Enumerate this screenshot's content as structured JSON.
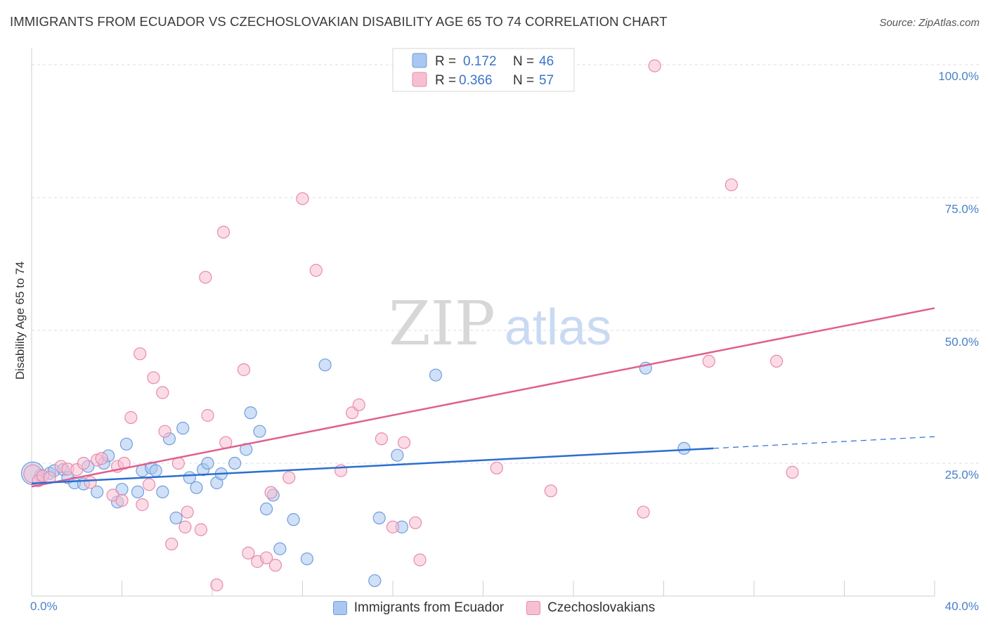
{
  "title": "IMMIGRANTS FROM ECUADOR VS CZECHOSLOVAKIAN DISABILITY AGE 65 TO 74 CORRELATION CHART",
  "source": "Source: ZipAtlas.com",
  "watermark": {
    "zip": "ZIP",
    "atlas": "atlas"
  },
  "legend": {
    "series": [
      {
        "r_label": "R =",
        "r_value": "0.172",
        "n_label": "N =",
        "n_value": "46"
      },
      {
        "r_label": "R =",
        "r_value": "0.366",
        "n_label": "N =",
        "n_value": "57"
      }
    ]
  },
  "bottom_legend": [
    "Immigrants from Ecuador",
    "Czechoslovakians"
  ],
  "colors": {
    "blue_fill": "#a9c7f0",
    "blue_stroke": "#6f9ede",
    "blue_line": "#2a6fd1",
    "pink_fill": "#f7c0d2",
    "pink_stroke": "#e88aaa",
    "pink_line": "#e0608e",
    "grid": "#dddddd",
    "tick_label": "#4a7fc8"
  },
  "chart_data": {
    "type": "scatter",
    "title": "IMMIGRANTS FROM ECUADOR VS CZECHOSLOVAKIAN DISABILITY AGE 65 TO 74 CORRELATION CHART",
    "xlabel": "",
    "ylabel": "Disability Age 65 to 74",
    "xlim": [
      0,
      40
    ],
    "ylim": [
      0,
      102
    ],
    "x_tick_labels": {
      "min": "0.0%",
      "max": "40.0%"
    },
    "y_ticks": [
      25,
      50,
      75,
      100
    ],
    "y_tick_labels": [
      "25.0%",
      "50.0%",
      "75.0%",
      "100.0%"
    ],
    "series": [
      {
        "name": "Immigrants from Ecuador",
        "color": "blue",
        "trend": {
          "x0": 0,
          "y0": 21.2,
          "x1": 30.2,
          "y1": 27.8,
          "dash_to_x": 40,
          "dash_to_y": 30.0
        },
        "points": [
          [
            0.05,
            23.1,
            1.9
          ],
          [
            0.4,
            22.7,
            1
          ],
          [
            0.8,
            23.1,
            1
          ],
          [
            1.0,
            23.6,
            1
          ],
          [
            1.4,
            23.8,
            1
          ],
          [
            1.6,
            22.3,
            1
          ],
          [
            1.9,
            21.3,
            1
          ],
          [
            2.3,
            21.1,
            1
          ],
          [
            2.5,
            24.4,
            1
          ],
          [
            2.9,
            19.6,
            1
          ],
          [
            3.2,
            25.0,
            1
          ],
          [
            3.4,
            26.4,
            1
          ],
          [
            3.8,
            17.7,
            1
          ],
          [
            4.0,
            20.1,
            1
          ],
          [
            4.2,
            28.6,
            1
          ],
          [
            4.7,
            19.6,
            1
          ],
          [
            4.9,
            23.6,
            1
          ],
          [
            5.3,
            24.1,
            1
          ],
          [
            5.5,
            23.6,
            1
          ],
          [
            5.8,
            19.6,
            1
          ],
          [
            6.1,
            29.6,
            1
          ],
          [
            6.4,
            14.7,
            1
          ],
          [
            6.7,
            31.6,
            1
          ],
          [
            7.0,
            22.3,
            1
          ],
          [
            7.3,
            20.4,
            1
          ],
          [
            7.6,
            23.8,
            1
          ],
          [
            7.8,
            25.0,
            1
          ],
          [
            8.2,
            21.3,
            1
          ],
          [
            8.4,
            23.0,
            1
          ],
          [
            9.0,
            25.0,
            1
          ],
          [
            9.5,
            27.6,
            1
          ],
          [
            9.7,
            34.5,
            1
          ],
          [
            10.1,
            31.0,
            1
          ],
          [
            10.4,
            16.4,
            1
          ],
          [
            10.7,
            19.0,
            1
          ],
          [
            11.0,
            8.9,
            1
          ],
          [
            11.6,
            14.4,
            1
          ],
          [
            12.2,
            7.0,
            1
          ],
          [
            13.0,
            43.5,
            1
          ],
          [
            15.2,
            2.9,
            1
          ],
          [
            15.4,
            14.7,
            1
          ],
          [
            16.2,
            26.5,
            1
          ],
          [
            16.4,
            13.0,
            1
          ],
          [
            17.9,
            41.6,
            1
          ],
          [
            27.2,
            42.9,
            1
          ],
          [
            28.9,
            27.8,
            1
          ]
        ]
      },
      {
        "name": "Czechoslovakians",
        "color": "pink",
        "trend": {
          "x0": 0,
          "y0": 20.6,
          "x1": 40,
          "y1": 54.2
        },
        "points": [
          [
            0.05,
            23.0,
            1.5
          ],
          [
            0.3,
            21.7,
            1
          ],
          [
            0.5,
            22.6,
            1
          ],
          [
            0.8,
            22.3,
            1
          ],
          [
            1.3,
            24.4,
            1
          ],
          [
            1.6,
            23.9,
            1
          ],
          [
            2.0,
            23.8,
            1
          ],
          [
            2.3,
            25.0,
            1
          ],
          [
            2.6,
            21.4,
            1
          ],
          [
            2.9,
            25.6,
            1
          ],
          [
            3.1,
            25.9,
            1
          ],
          [
            3.6,
            19.0,
            1
          ],
          [
            3.8,
            24.4,
            1
          ],
          [
            4.0,
            18.0,
            1
          ],
          [
            4.1,
            25.0,
            1
          ],
          [
            4.4,
            33.6,
            1
          ],
          [
            4.8,
            45.6,
            1
          ],
          [
            4.9,
            17.2,
            1
          ],
          [
            5.2,
            21.0,
            1
          ],
          [
            5.4,
            41.1,
            1
          ],
          [
            5.8,
            38.3,
            1
          ],
          [
            5.9,
            31.0,
            1
          ],
          [
            6.2,
            9.8,
            1
          ],
          [
            6.5,
            25.0,
            1
          ],
          [
            6.8,
            13.0,
            1
          ],
          [
            6.9,
            15.8,
            1
          ],
          [
            7.5,
            12.5,
            1
          ],
          [
            7.7,
            60.0,
            1
          ],
          [
            7.8,
            34.0,
            1
          ],
          [
            8.2,
            2.1,
            1
          ],
          [
            8.5,
            68.5,
            1
          ],
          [
            8.6,
            28.9,
            1
          ],
          [
            9.4,
            42.6,
            1
          ],
          [
            9.6,
            8.1,
            1
          ],
          [
            10.0,
            6.5,
            1
          ],
          [
            10.4,
            7.2,
            1
          ],
          [
            10.6,
            19.5,
            1
          ],
          [
            10.8,
            5.8,
            1
          ],
          [
            11.4,
            22.3,
            1
          ],
          [
            12.0,
            74.8,
            1
          ],
          [
            12.6,
            61.3,
            1
          ],
          [
            13.7,
            23.6,
            1
          ],
          [
            14.2,
            34.5,
            1
          ],
          [
            14.5,
            36.0,
            1
          ],
          [
            15.5,
            29.6,
            1
          ],
          [
            16.0,
            13.0,
            1
          ],
          [
            16.5,
            28.9,
            1
          ],
          [
            17.0,
            13.8,
            1
          ],
          [
            17.2,
            6.8,
            1
          ],
          [
            20.6,
            24.1,
            1
          ],
          [
            23.0,
            19.8,
            1
          ],
          [
            27.1,
            15.8,
            1
          ],
          [
            27.6,
            99.8,
            1
          ],
          [
            30.0,
            44.2,
            1
          ],
          [
            31.0,
            77.4,
            1
          ],
          [
            33.0,
            44.2,
            1
          ],
          [
            33.7,
            23.3,
            1
          ]
        ]
      }
    ]
  }
}
